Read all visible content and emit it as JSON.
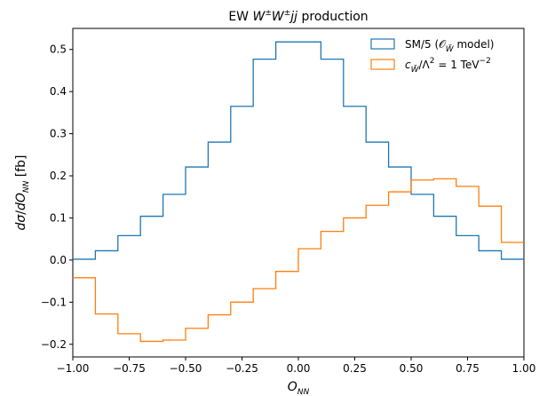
{
  "chart_data": {
    "type": "line",
    "drawstyle": "steps",
    "title": "EW W±W±jj production",
    "xlabel": "O_NN",
    "ylabel": "dσ/dO_NN [fb]",
    "xlim": [
      -1.0,
      1.0
    ],
    "ylim": [
      -0.23,
      0.55
    ],
    "x_ticks": [
      -1.0,
      -0.75,
      -0.5,
      -0.25,
      0.0,
      0.25,
      0.5,
      0.75,
      1.0
    ],
    "x_tick_labels": [
      "−1.00",
      "−0.75",
      "−0.50",
      "−0.25",
      "0.00",
      "0.25",
      "0.50",
      "0.75",
      "1.00"
    ],
    "y_ticks": [
      -0.2,
      -0.1,
      0.0,
      0.1,
      0.2,
      0.3,
      0.4,
      0.5
    ],
    "y_tick_labels": [
      "−0.2",
      "−0.1",
      "0.0",
      "0.1",
      "0.2",
      "0.3",
      "0.4",
      "0.5"
    ],
    "bin_edges": [
      -1.0,
      -0.9,
      -0.8,
      -0.7,
      -0.6,
      -0.5,
      -0.4,
      -0.3,
      -0.2,
      -0.1,
      0.0,
      0.1,
      0.2,
      0.3,
      0.4,
      0.5,
      0.6,
      0.7,
      0.8,
      0.9,
      1.0
    ],
    "legend_position": "top-right",
    "grid": false,
    "series": [
      {
        "name": "SM/5 (O_W̃ model)",
        "color": "#1f77b4",
        "values": [
          0.002,
          0.022,
          0.058,
          0.104,
          0.156,
          0.221,
          0.28,
          0.365,
          0.477,
          0.518,
          0.518,
          0.477,
          0.365,
          0.28,
          0.221,
          0.156,
          0.104,
          0.058,
          0.022,
          0.002
        ]
      },
      {
        "name": "c_W̃/Λ² = 1 TeV⁻²",
        "color": "#ff7f0e",
        "values": [
          -0.042,
          -0.128,
          -0.175,
          -0.193,
          -0.19,
          -0.162,
          -0.13,
          -0.1,
          -0.068,
          -0.027,
          0.027,
          0.068,
          0.1,
          0.13,
          0.162,
          0.19,
          0.193,
          0.175,
          0.128,
          0.042
        ]
      }
    ]
  }
}
